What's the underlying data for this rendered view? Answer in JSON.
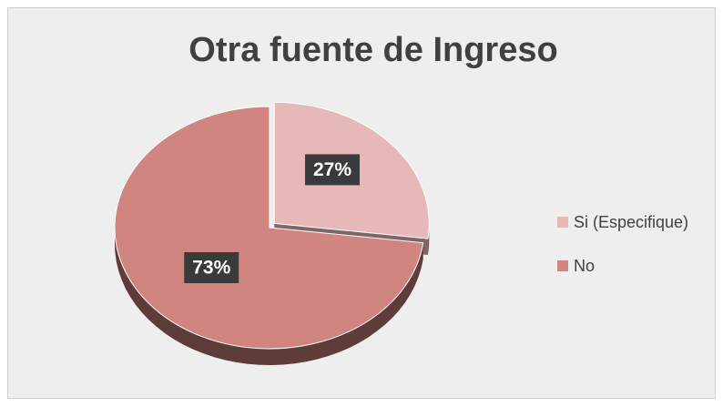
{
  "chart_data": {
    "type": "pie",
    "title": "Otra fuente de Ingreso",
    "categories": [
      "Si (Especifique)",
      "No"
    ],
    "values": [
      27,
      73
    ],
    "value_labels": [
      "27%",
      "73%"
    ],
    "colors": [
      "#e6b8b7",
      "#d08580"
    ],
    "legend": "right"
  }
}
